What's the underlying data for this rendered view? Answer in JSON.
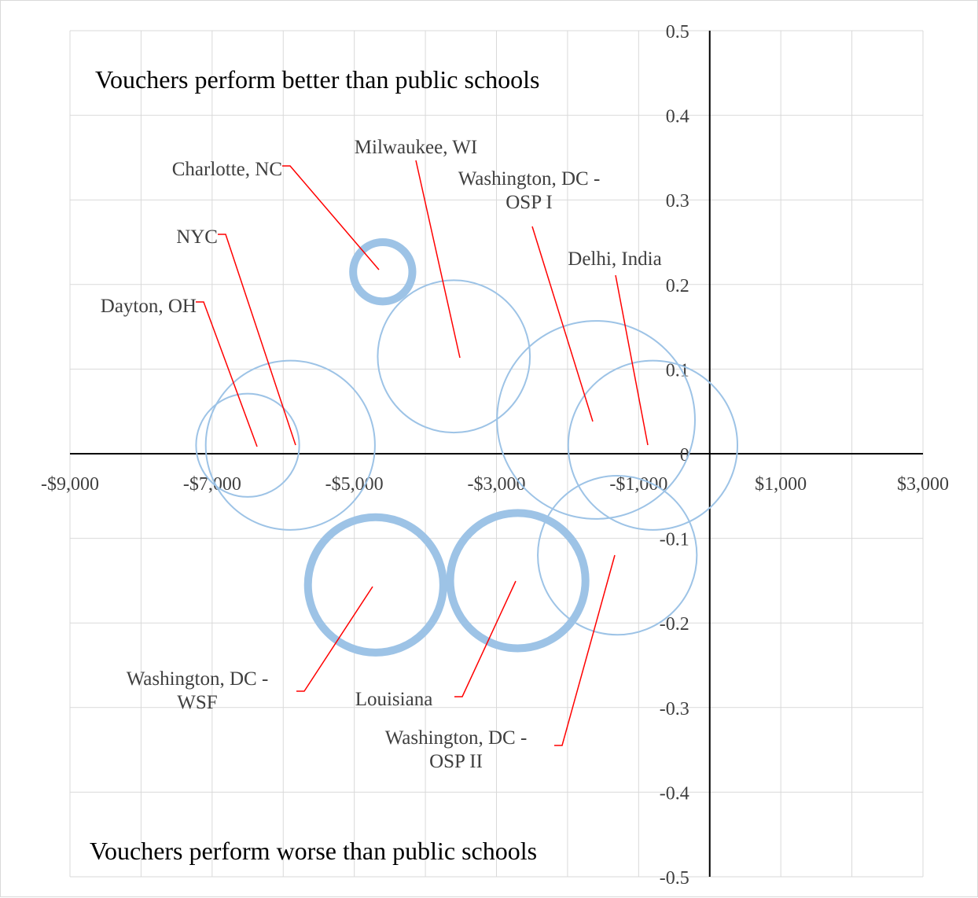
{
  "chart_data": {
    "type": "bubble",
    "title": "",
    "xlabel": "",
    "ylabel": "",
    "xlim": [
      -9000,
      3000
    ],
    "ylim": [
      -0.5,
      0.5
    ],
    "x_ticks": [
      -9000,
      -8000,
      -7000,
      -6000,
      -5000,
      -4000,
      -3000,
      -2000,
      -1000,
      0,
      1000,
      2000,
      3000
    ],
    "x_tick_labels": [
      "-$9,000",
      "-$7,000",
      "-$5,000",
      "-$3,000",
      "-$1,000",
      "$1,000",
      "$3,000"
    ],
    "x_tick_label_values": [
      -9000,
      -7000,
      -5000,
      -3000,
      -1000,
      1000,
      3000
    ],
    "y_ticks": [
      -0.5,
      -0.4,
      -0.3,
      -0.2,
      -0.1,
      0,
      0.1,
      0.2,
      0.3,
      0.4,
      0.5
    ],
    "y_tick_labels": [
      "-0.5",
      "-0.4",
      "-0.3",
      "-0.2",
      "-0.1",
      "0",
      "0.1",
      "0.2",
      "0.3",
      "0.4",
      "0.5"
    ],
    "grid": true,
    "annotations": {
      "top": "Vouchers perform better than public schools",
      "bottom": "Vouchers perform worse than public schools"
    },
    "series_color": "#9dc3e6",
    "leader_color": "#ff0000",
    "points": [
      {
        "name": "Dayton, OH",
        "x": -6500,
        "y": 0.01,
        "size": 0.061,
        "emphasized": false
      },
      {
        "name": "NYC",
        "x": -5900,
        "y": 0.01,
        "size": 0.1,
        "emphasized": false
      },
      {
        "name": "Charlotte, NC",
        "x": -4600,
        "y": 0.215,
        "size": 0.035,
        "emphasized": true
      },
      {
        "name": "Milwaukee, WI",
        "x": -3600,
        "y": 0.115,
        "size": 0.09,
        "emphasized": false
      },
      {
        "name": "Washington, DC - OSP I",
        "x": -1600,
        "y": 0.04,
        "size": 0.117,
        "emphasized": false
      },
      {
        "name": "Delhi, India",
        "x": -800,
        "y": 0.01,
        "size": 0.1,
        "emphasized": false
      },
      {
        "name": "Washington, DC - WSF",
        "x": -4700,
        "y": -0.155,
        "size": 0.08,
        "emphasized": true
      },
      {
        "name": "Louisiana",
        "x": -2700,
        "y": -0.15,
        "size": 0.08,
        "emphasized": true
      },
      {
        "name": "Washington, DC - OSP II",
        "x": -1300,
        "y": -0.12,
        "size": 0.094,
        "emphasized": false
      }
    ]
  }
}
